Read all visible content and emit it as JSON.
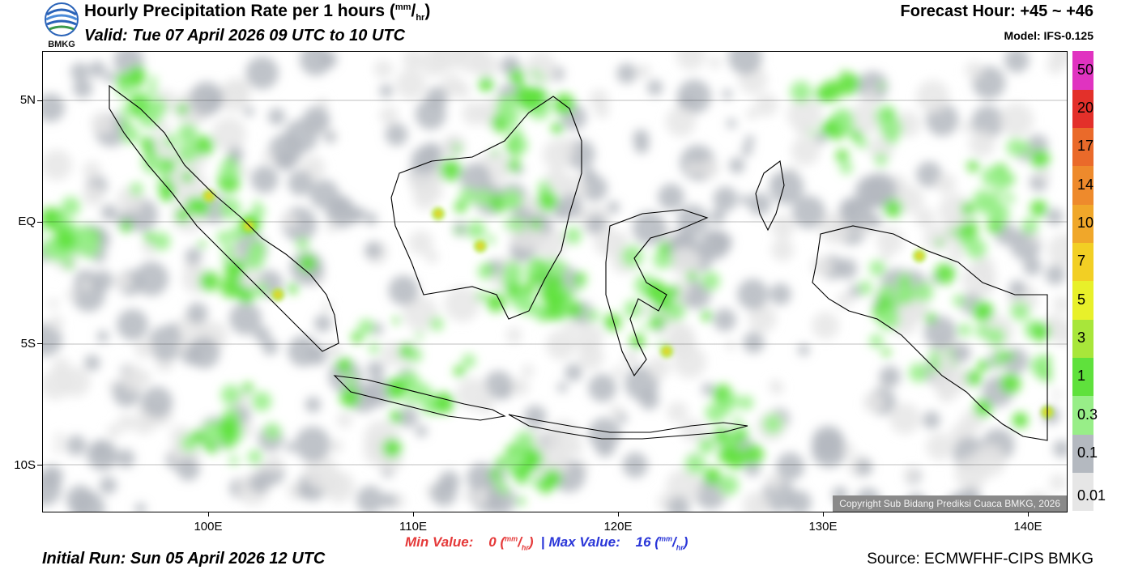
{
  "header": {
    "title_text": "Hourly Precipitation Rate per 1 hours (",
    "title_unit_num": "mm",
    "title_unit_den": "hr",
    "title_close": ")",
    "valid": "Valid: Tue 07 April 2026 09 UTC to 10 UTC",
    "forecast_hour": "Forecast Hour: +45 ~ +46",
    "model": "Model: IFS-0.125"
  },
  "logo": {
    "text": "BMKG"
  },
  "map": {
    "lat_labels": [
      "5N",
      "EQ",
      "5S",
      "10S"
    ],
    "lon_labels": [
      "100E",
      "110E",
      "120E",
      "130E",
      "140E"
    ],
    "copyright": "Copyright Sub Bidang Prediksi Cuaca BMKG, 2026"
  },
  "colorbar": {
    "levels": [
      "0.01",
      "0.1",
      "0.3",
      "1",
      "3",
      "5",
      "7",
      "10",
      "14",
      "17",
      "20",
      "50"
    ],
    "colors": [
      "#e6e6e6",
      "#b4b9c0",
      "#98ee88",
      "#5fe13c",
      "#a8e63a",
      "#e8f02a",
      "#f2cf24",
      "#f0a72a",
      "#ee8a2c",
      "#ea6a2a",
      "#e3302a",
      "#e033c0"
    ]
  },
  "footer": {
    "min_label": "Min Value:",
    "min_value": "0",
    "max_label": "Max Value:",
    "max_value": "16",
    "unit_num": "mm",
    "unit_den": "hr",
    "separator": "|",
    "initial_run": "Initial Run: Sun 05 April 2026 12 UTC",
    "source": "Source: ECMWFHF-CIPS BMKG"
  }
}
